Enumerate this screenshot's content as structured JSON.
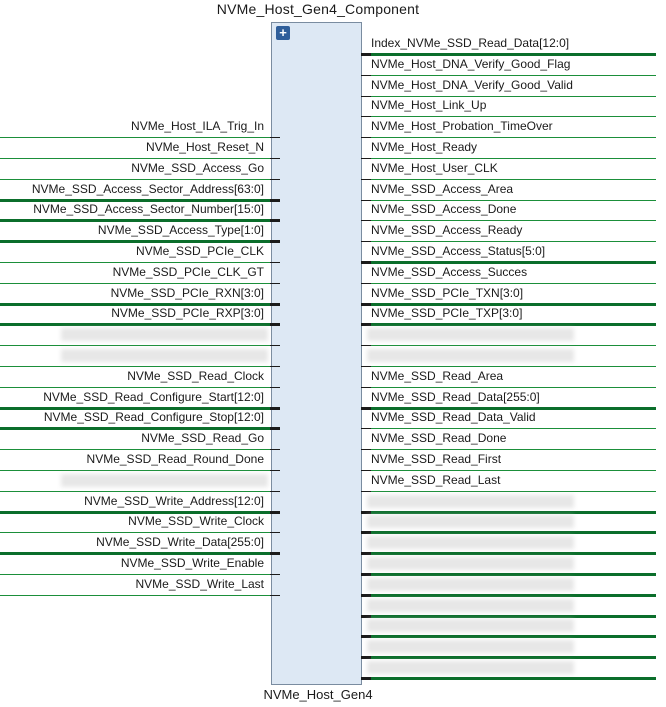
{
  "component": {
    "title": "NVMe_Host_Gen4_Component",
    "subtitle": "NVMe_Host_Gen4",
    "expand_symbol": "+"
  },
  "left_pins": [
    {
      "row": 5,
      "name": "NVMe_Host_ILA_Trig_In",
      "bus": false,
      "obscured": false
    },
    {
      "row": 6,
      "name": "NVMe_Host_Reset_N",
      "bus": false,
      "obscured": false
    },
    {
      "row": 7,
      "name": "NVMe_SSD_Access_Go",
      "bus": false,
      "obscured": false
    },
    {
      "row": 8,
      "name": "NVMe_SSD_Access_Sector_Address[63:0]",
      "bus": true,
      "obscured": false
    },
    {
      "row": 9,
      "name": "NVMe_SSD_Access_Sector_Number[15:0]",
      "bus": true,
      "obscured": false
    },
    {
      "row": 10,
      "name": "NVMe_SSD_Access_Type[1:0]",
      "bus": true,
      "obscured": false
    },
    {
      "row": 11,
      "name": "NVMe_SSD_PCIe_CLK",
      "bus": false,
      "obscured": false
    },
    {
      "row": 12,
      "name": "NVMe_SSD_PCIe_CLK_GT",
      "bus": false,
      "obscured": false
    },
    {
      "row": 13,
      "name": "NVMe_SSD_PCIe_RXN[3:0]",
      "bus": true,
      "obscured": false
    },
    {
      "row": 14,
      "name": "NVMe_SSD_PCIe_RXP[3:0]",
      "bus": true,
      "obscured": false
    },
    {
      "row": 15,
      "name": "",
      "bus": false,
      "obscured": true
    },
    {
      "row": 16,
      "name": "",
      "bus": false,
      "obscured": true
    },
    {
      "row": 17,
      "name": "NVMe_SSD_Read_Clock",
      "bus": false,
      "obscured": false
    },
    {
      "row": 18,
      "name": "NVMe_SSD_Read_Configure_Start[12:0]",
      "bus": true,
      "obscured": false
    },
    {
      "row": 19,
      "name": "NVMe_SSD_Read_Configure_Stop[12:0]",
      "bus": true,
      "obscured": false
    },
    {
      "row": 20,
      "name": "NVMe_SSD_Read_Go",
      "bus": false,
      "obscured": false
    },
    {
      "row": 21,
      "name": "NVMe_SSD_Read_Round_Done",
      "bus": false,
      "obscured": false
    },
    {
      "row": 22,
      "name": "",
      "bus": false,
      "obscured": true
    },
    {
      "row": 23,
      "name": "NVMe_SSD_Write_Address[12:0]",
      "bus": true,
      "obscured": false
    },
    {
      "row": 24,
      "name": "NVMe_SSD_Write_Clock",
      "bus": false,
      "obscured": false
    },
    {
      "row": 25,
      "name": "NVMe_SSD_Write_Data[255:0]",
      "bus": true,
      "obscured": false
    },
    {
      "row": 26,
      "name": "NVMe_SSD_Write_Enable",
      "bus": false,
      "obscured": false
    },
    {
      "row": 27,
      "name": "NVMe_SSD_Write_Last",
      "bus": false,
      "obscured": false
    }
  ],
  "right_pins": [
    {
      "row": 1,
      "name": "Index_NVMe_SSD_Read_Data[12:0]",
      "bus": true,
      "obscured": false
    },
    {
      "row": 2,
      "name": "NVMe_Host_DNA_Verify_Good_Flag",
      "bus": false,
      "obscured": false
    },
    {
      "row": 3,
      "name": "NVMe_Host_DNA_Verify_Good_Valid",
      "bus": false,
      "obscured": false
    },
    {
      "row": 4,
      "name": "NVMe_Host_Link_Up",
      "bus": false,
      "obscured": false
    },
    {
      "row": 5,
      "name": "NVMe_Host_Probation_TimeOver",
      "bus": false,
      "obscured": false
    },
    {
      "row": 6,
      "name": "NVMe_Host_Ready",
      "bus": false,
      "obscured": false
    },
    {
      "row": 7,
      "name": "NVMe_Host_User_CLK",
      "bus": false,
      "obscured": false
    },
    {
      "row": 8,
      "name": "NVMe_SSD_Access_Area",
      "bus": false,
      "obscured": false
    },
    {
      "row": 9,
      "name": "NVMe_SSD_Access_Done",
      "bus": false,
      "obscured": false
    },
    {
      "row": 10,
      "name": "NVMe_SSD_Access_Ready",
      "bus": false,
      "obscured": false
    },
    {
      "row": 11,
      "name": "NVMe_SSD_Access_Status[5:0]",
      "bus": true,
      "obscured": false
    },
    {
      "row": 12,
      "name": "NVMe_SSD_Access_Succes",
      "bus": false,
      "obscured": false
    },
    {
      "row": 13,
      "name": "NVMe_SSD_PCIe_TXN[3:0]",
      "bus": true,
      "obscured": false
    },
    {
      "row": 14,
      "name": "NVMe_SSD_PCIe_TXP[3:0]",
      "bus": true,
      "obscured": false
    },
    {
      "row": 15,
      "name": "",
      "bus": false,
      "obscured": true
    },
    {
      "row": 16,
      "name": "",
      "bus": false,
      "obscured": true
    },
    {
      "row": 17,
      "name": "NVMe_SSD_Read_Area",
      "bus": false,
      "obscured": false
    },
    {
      "row": 18,
      "name": "NVMe_SSD_Read_Data[255:0]",
      "bus": true,
      "obscured": false
    },
    {
      "row": 19,
      "name": "NVMe_SSD_Read_Data_Valid",
      "bus": false,
      "obscured": false
    },
    {
      "row": 20,
      "name": "NVMe_SSD_Read_Done",
      "bus": false,
      "obscured": false
    },
    {
      "row": 21,
      "name": "NVMe_SSD_Read_First",
      "bus": false,
      "obscured": false
    },
    {
      "row": 22,
      "name": "NVMe_SSD_Read_Last",
      "bus": false,
      "obscured": false
    },
    {
      "row": 23,
      "name": "",
      "bus": true,
      "obscured": true
    },
    {
      "row": 24,
      "name": "",
      "bus": true,
      "obscured": true
    },
    {
      "row": 25,
      "name": "",
      "bus": true,
      "obscured": true
    },
    {
      "row": 26,
      "name": "",
      "bus": true,
      "obscured": true
    },
    {
      "row": 27,
      "name": "",
      "bus": true,
      "obscured": true
    },
    {
      "row": 28,
      "name": "",
      "bus": true,
      "obscured": true
    },
    {
      "row": 29,
      "name": "",
      "bus": true,
      "obscured": true
    },
    {
      "row": 30,
      "name": "",
      "bus": true,
      "obscured": true
    },
    {
      "row": 31,
      "name": "",
      "bus": true,
      "obscured": true
    }
  ]
}
